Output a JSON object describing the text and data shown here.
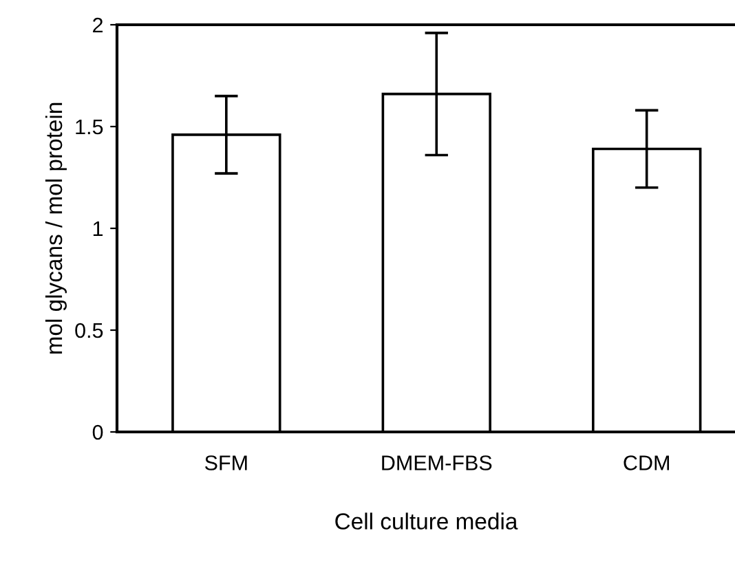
{
  "chart_data": {
    "type": "bar",
    "xlabel": "Cell culture media",
    "ylabel": "mol glycans / mol protein",
    "categories": [
      "SFM",
      "DMEM-FBS",
      "CDM"
    ],
    "values": [
      1.46,
      1.66,
      1.39
    ],
    "errors": [
      0.19,
      0.3,
      0.19
    ],
    "color": "#ffffff",
    "ylim": [
      0,
      2
    ],
    "yticks": [
      0,
      0.5,
      1,
      1.5,
      2
    ],
    "grid": false,
    "legend": false
  }
}
